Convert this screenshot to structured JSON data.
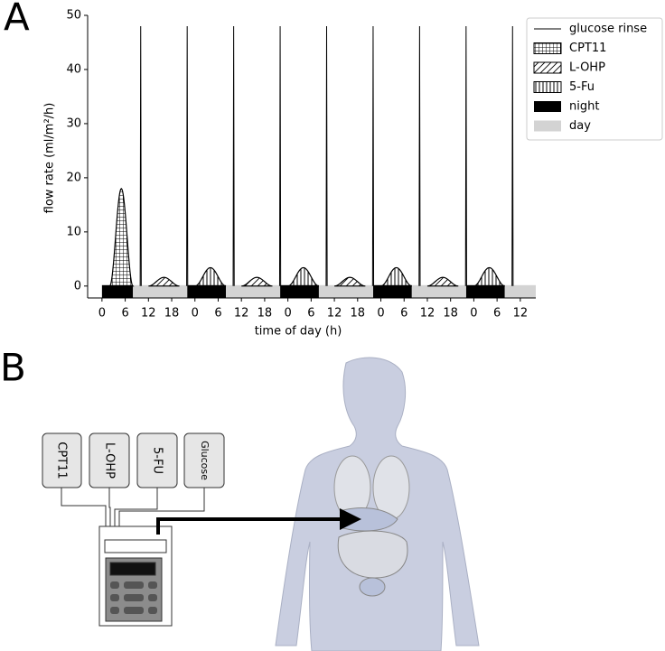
{
  "panels": [
    "A",
    "B"
  ],
  "chart_data": {
    "type": "line",
    "xlabel": "time of day (h)",
    "ylabel": "flow rate (ml/m²/h)",
    "xlim": [
      -3.7,
      112
    ],
    "ylim": [
      -2.2,
      50
    ],
    "xticks": [
      0,
      6,
      12,
      18,
      {
        "value": 24,
        "label": "0"
      },
      {
        "value": 30,
        "label": "6"
      },
      {
        "value": 36,
        "label": "12"
      },
      {
        "value": 42,
        "label": "18"
      },
      {
        "value": 48,
        "label": "0"
      },
      {
        "value": 54,
        "label": "6"
      },
      {
        "value": 60,
        "label": "12"
      },
      {
        "value": 66,
        "label": "18"
      },
      {
        "value": 72,
        "label": "0"
      },
      {
        "value": 78,
        "label": "6"
      },
      {
        "value": 84,
        "label": "12"
      },
      {
        "value": 90,
        "label": "18"
      },
      {
        "value": 96,
        "label": "0"
      },
      {
        "value": 102,
        "label": "6"
      },
      {
        "value": 108,
        "label": "12"
      }
    ],
    "yticks": [
      0,
      10,
      20,
      30,
      40,
      50
    ],
    "series": [
      {
        "name": "glucose rinse",
        "color": "#000000",
        "x": [
          10,
          22,
          34,
          46,
          58,
          70,
          82,
          94,
          106
        ],
        "values": [
          48,
          48,
          48,
          48,
          48,
          48,
          48,
          48,
          48
        ]
      },
      {
        "name": "CPT11",
        "color": "#000000",
        "x": [
          5
        ],
        "values": [
          18
        ]
      },
      {
        "name": "L-OHP",
        "color": "#000000",
        "x": [
          16,
          40,
          64,
          88
        ],
        "values": [
          1.6,
          1.6,
          1.6,
          1.6
        ]
      },
      {
        "name": "5-Fu",
        "color": "#000000",
        "x": [
          28,
          52,
          76,
          100
        ],
        "values": [
          3.4,
          3.4,
          3.4,
          3.4
        ]
      },
      {
        "name": "night",
        "color": "#000000",
        "intervals": [
          [
            0,
            8
          ],
          [
            22,
            32
          ],
          [
            46,
            56
          ],
          [
            70,
            80
          ],
          [
            94,
            104
          ]
        ]
      },
      {
        "name": "day",
        "color": "#d3d3d3",
        "intervals": [
          [
            8,
            22
          ],
          [
            32,
            46
          ],
          [
            56,
            70
          ],
          [
            80,
            94
          ],
          [
            104,
            112
          ]
        ]
      }
    ]
  },
  "diagram": {
    "reservoirs": [
      "CPT11",
      "L-OHP",
      "5-FU",
      "Glucose"
    ]
  }
}
